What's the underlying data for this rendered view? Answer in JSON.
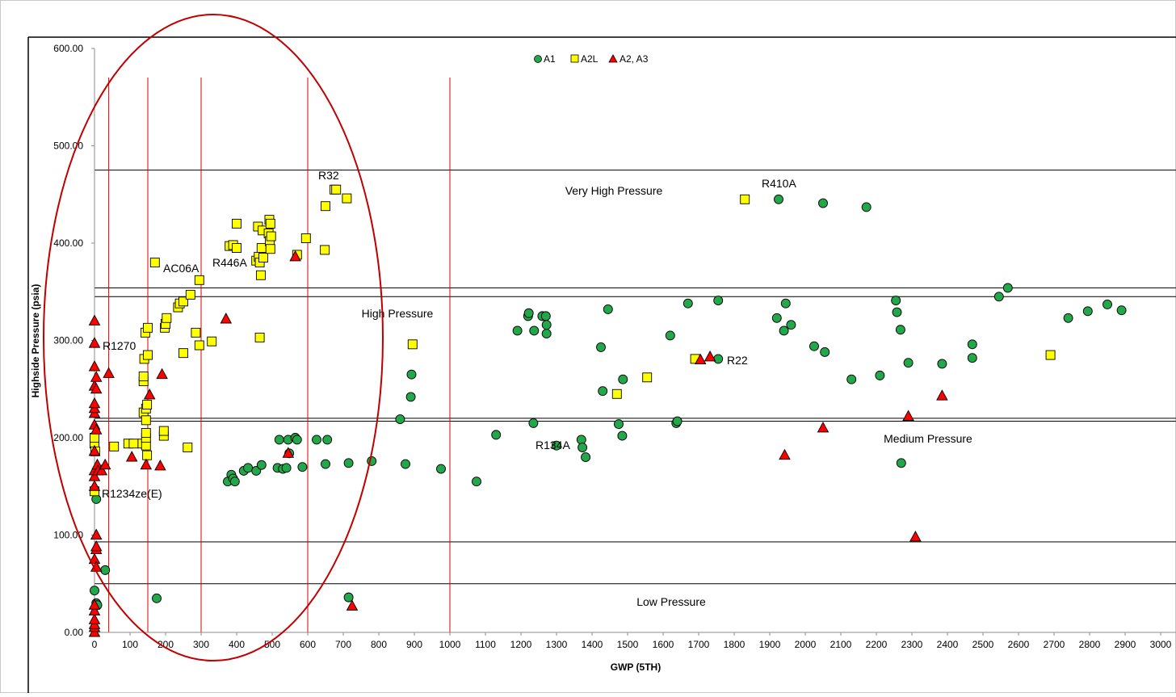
{
  "chart_data": {
    "type": "scatter",
    "title": "",
    "xlabel": "GWP (5TH)",
    "ylabel": "Highside Pressure (psia)",
    "xlim": [
      0,
      3000
    ],
    "ylim": [
      0,
      600
    ],
    "x_ticks": [
      "0",
      "100",
      "200",
      "300",
      "400",
      "500",
      "600",
      "700",
      "800",
      "900",
      "1000",
      "1100",
      "1200",
      "1300",
      "1400",
      "1500",
      "1600",
      "1700",
      "1800",
      "1900",
      "2000",
      "2100",
      "2200",
      "2300",
      "2400",
      "2500",
      "2600",
      "2700",
      "2800",
      "2900",
      "3000"
    ],
    "y_ticks": [
      "0.00",
      "100.00",
      "200.00",
      "300.00",
      "400.00",
      "500.00",
      "600.00"
    ],
    "legend_position": "top-center",
    "grid": false,
    "series": [
      {
        "name": "A1",
        "marker": "circle",
        "color": "#22a84a",
        "points": [
          [
            0,
            43
          ],
          [
            5,
            30
          ],
          [
            8,
            28
          ],
          [
            30,
            64
          ],
          [
            5,
            137
          ],
          [
            175,
            35
          ],
          [
            715,
            36
          ],
          [
            375,
            155
          ],
          [
            385,
            162
          ],
          [
            390,
            158
          ],
          [
            395,
            155
          ],
          [
            420,
            166
          ],
          [
            432,
            169
          ],
          [
            455,
            166
          ],
          [
            470,
            172
          ],
          [
            515,
            169
          ],
          [
            520,
            198
          ],
          [
            530,
            168
          ],
          [
            540,
            169
          ],
          [
            545,
            198
          ],
          [
            548,
            184
          ],
          [
            565,
            200
          ],
          [
            570,
            198
          ],
          [
            585,
            170
          ],
          [
            625,
            198
          ],
          [
            650,
            173
          ],
          [
            655,
            198
          ],
          [
            715,
            174
          ],
          [
            780,
            176
          ],
          [
            860,
            219
          ],
          [
            875,
            173
          ],
          [
            890,
            242
          ],
          [
            892,
            265
          ],
          [
            975,
            168
          ],
          [
            1075,
            155
          ],
          [
            1130,
            203
          ],
          [
            1190,
            310
          ],
          [
            1220,
            325
          ],
          [
            1222,
            328
          ],
          [
            1235,
            215
          ],
          [
            1237,
            310
          ],
          [
            1260,
            325
          ],
          [
            1270,
            325
          ],
          [
            1272,
            307
          ],
          [
            1272,
            316
          ],
          [
            1300,
            192
          ],
          [
            1370,
            198
          ],
          [
            1373,
            190
          ],
          [
            1382,
            180
          ],
          [
            1425,
            293
          ],
          [
            1430,
            248
          ],
          [
            1445,
            332
          ],
          [
            1475,
            214
          ],
          [
            1485,
            202
          ],
          [
            1487,
            260
          ],
          [
            1620,
            305
          ],
          [
            1637,
            215
          ],
          [
            1640,
            217
          ],
          [
            1670,
            338
          ],
          [
            1755,
            281
          ],
          [
            1755,
            341
          ],
          [
            1920,
            323
          ],
          [
            1925,
            445
          ],
          [
            1940,
            310
          ],
          [
            1945,
            338
          ],
          [
            1960,
            316
          ],
          [
            2025,
            294
          ],
          [
            2055,
            288
          ],
          [
            2050,
            441
          ],
          [
            2130,
            260
          ],
          [
            2172,
            437
          ],
          [
            2210,
            264
          ],
          [
            2255,
            341
          ],
          [
            2258,
            329
          ],
          [
            2268,
            311
          ],
          [
            2270,
            174
          ],
          [
            2290,
            277
          ],
          [
            2385,
            276
          ],
          [
            2470,
            296
          ],
          [
            2470,
            282
          ],
          [
            2545,
            345
          ],
          [
            2570,
            354
          ],
          [
            2740,
            323
          ],
          [
            2795,
            330
          ],
          [
            2850,
            337
          ],
          [
            2890,
            331
          ]
        ]
      },
      {
        "name": "A2L",
        "marker": "square",
        "color": "#ffff00",
        "points": [
          [
            0,
            145
          ],
          [
            0,
            194
          ],
          [
            0,
            200
          ],
          [
            2,
            186
          ],
          [
            55,
            191
          ],
          [
            95,
            194
          ],
          [
            110,
            194
          ],
          [
            135,
            194
          ],
          [
            138,
            226
          ],
          [
            138,
            258
          ],
          [
            138,
            263
          ],
          [
            140,
            281
          ],
          [
            143,
            308
          ],
          [
            145,
            192
          ],
          [
            145,
            200
          ],
          [
            145,
            205
          ],
          [
            145,
            218
          ],
          [
            145,
            230
          ],
          [
            148,
            182
          ],
          [
            148,
            234
          ],
          [
            150,
            285
          ],
          [
            150,
            313
          ],
          [
            170,
            380
          ],
          [
            195,
            202
          ],
          [
            195,
            207
          ],
          [
            198,
            313
          ],
          [
            200,
            317
          ],
          [
            203,
            323
          ],
          [
            235,
            334
          ],
          [
            240,
            338
          ],
          [
            250,
            287
          ],
          [
            250,
            340
          ],
          [
            262,
            190
          ],
          [
            270,
            347
          ],
          [
            285,
            308
          ],
          [
            295,
            295
          ],
          [
            295,
            362
          ],
          [
            330,
            299
          ],
          [
            380,
            397
          ],
          [
            390,
            398
          ],
          [
            400,
            395
          ],
          [
            400,
            420
          ],
          [
            455,
            382
          ],
          [
            460,
            417
          ],
          [
            462,
            386
          ],
          [
            465,
            303
          ],
          [
            465,
            380
          ],
          [
            468,
            367
          ],
          [
            470,
            395
          ],
          [
            473,
            413
          ],
          [
            475,
            385
          ],
          [
            490,
            410
          ],
          [
            492,
            424
          ],
          [
            493,
            402
          ],
          [
            495,
            420
          ],
          [
            495,
            394
          ],
          [
            497,
            407
          ],
          [
            570,
            388
          ],
          [
            595,
            405
          ],
          [
            648,
            393
          ],
          [
            650,
            438
          ],
          [
            675,
            455
          ],
          [
            680,
            455
          ],
          [
            710,
            446
          ],
          [
            895,
            296
          ],
          [
            1470,
            245
          ],
          [
            1555,
            262
          ],
          [
            1690,
            281
          ],
          [
            1830,
            445
          ],
          [
            2690,
            285
          ]
        ]
      },
      {
        "name": "A2, A3",
        "marker": "triangle",
        "color": "#ff0000",
        "points": [
          [
            0,
            0
          ],
          [
            0,
            5
          ],
          [
            0,
            8
          ],
          [
            0,
            13
          ],
          [
            0,
            22
          ],
          [
            0,
            28
          ],
          [
            0,
            75
          ],
          [
            0,
            150
          ],
          [
            0,
            160
          ],
          [
            0,
            166
          ],
          [
            0,
            186
          ],
          [
            0,
            213
          ],
          [
            0,
            225
          ],
          [
            0,
            230
          ],
          [
            0,
            235
          ],
          [
            0,
            253
          ],
          [
            0,
            273
          ],
          [
            0,
            297
          ],
          [
            0,
            320
          ],
          [
            5,
            67
          ],
          [
            5,
            85
          ],
          [
            5,
            88
          ],
          [
            5,
            100
          ],
          [
            5,
            250
          ],
          [
            5,
            262
          ],
          [
            5,
            208
          ],
          [
            8,
            172
          ],
          [
            10,
            166
          ],
          [
            20,
            166
          ],
          [
            30,
            172
          ],
          [
            40,
            266
          ],
          [
            105,
            180
          ],
          [
            145,
            172
          ],
          [
            155,
            244
          ],
          [
            185,
            171
          ],
          [
            190,
            265
          ],
          [
            370,
            322
          ],
          [
            545,
            184
          ],
          [
            565,
            386
          ],
          [
            725,
            27
          ],
          [
            1705,
            280
          ],
          [
            1732,
            283
          ],
          [
            1942,
            182
          ],
          [
            2050,
            210
          ],
          [
            2290,
            222
          ],
          [
            2310,
            98
          ],
          [
            2385,
            243
          ]
        ]
      }
    ],
    "pressure_zones": [
      {
        "label": "Very High Pressure",
        "y_range": [
          354,
          475
        ]
      },
      {
        "label": "High Pressure",
        "y_range": [
          220,
          345
        ]
      },
      {
        "label": "Medium Pressure",
        "y_range": [
          93,
          217
        ]
      },
      {
        "label": "Low Pressure",
        "y_range": [
          0,
          50
        ]
      }
    ],
    "threshold_lines_x": [
      40,
      150,
      300,
      600,
      1000
    ],
    "annotations": [
      "R32",
      "R410A",
      "AC06A",
      "R446A",
      "R1270",
      "R22",
      "R134A",
      "R1234ze(E)"
    ]
  }
}
